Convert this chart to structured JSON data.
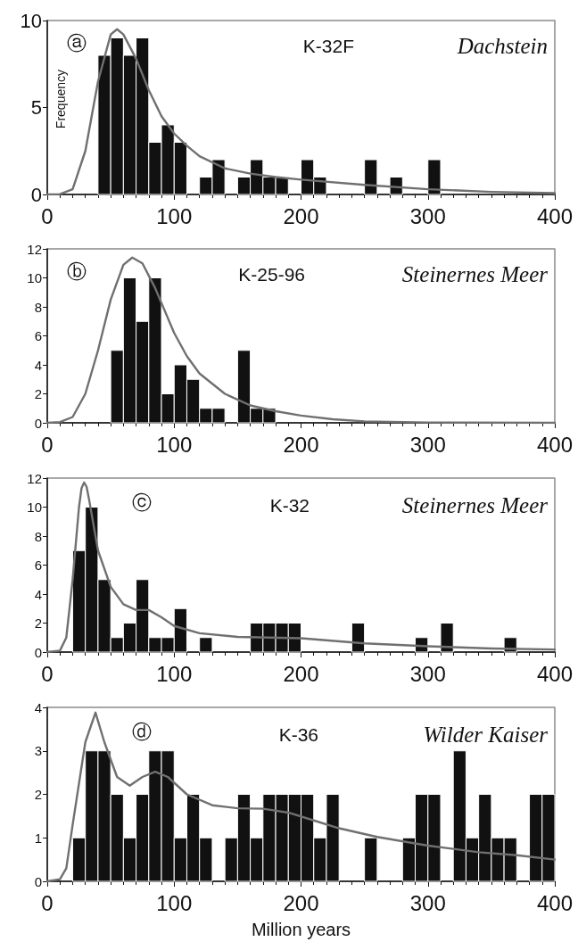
{
  "chart_data": [
    {
      "type": "histogram",
      "ylabel": "Frequency",
      "annotations": [
        "ⓐ",
        "K-32F",
        "Dachstein"
      ],
      "bins": [
        40,
        50,
        60,
        70,
        80,
        90,
        100,
        110,
        120,
        130,
        140,
        150,
        160,
        170,
        180,
        190,
        200,
        210,
        220,
        230,
        240,
        250,
        260,
        270,
        280,
        290,
        300,
        310
      ],
      "xlim": [
        0,
        400
      ],
      "xticks": [
        0,
        100,
        200,
        300,
        400
      ],
      "ylim": [
        0,
        10
      ],
      "yticks": [
        0,
        5,
        10
      ],
      "grid": false,
      "series": [
        {
          "color": "#111111",
          "values": [
            8,
            9,
            8,
            9,
            3,
            4,
            3,
            0,
            1,
            2,
            0,
            1,
            2,
            1,
            1,
            0,
            2,
            1,
            0,
            0,
            0,
            2,
            0,
            1,
            0,
            0,
            2
          ]
        },
        {
          "type": "line",
          "color": "#707070",
          "x": [
            0,
            10,
            20,
            30,
            40,
            50,
            55,
            60,
            70,
            80,
            90,
            100,
            110,
            120,
            140,
            160,
            180,
            200,
            250,
            300,
            350,
            400
          ],
          "values": [
            0,
            0.02,
            0.3,
            2.5,
            6.5,
            9.2,
            9.5,
            9.2,
            7.8,
            6,
            4.5,
            3.5,
            2.8,
            2.2,
            1.5,
            1.2,
            1,
            0.85,
            0.55,
            0.3,
            0.15,
            0.08
          ]
        }
      ]
    },
    {
      "type": "histogram",
      "annotations": [
        "ⓑ",
        "K-25-96",
        "Steinernes Meer"
      ],
      "bins": [
        50,
        60,
        70,
        80,
        90,
        100,
        110,
        120,
        130,
        140,
        150,
        160,
        170,
        180
      ],
      "xlim": [
        0,
        400
      ],
      "xticks": [
        0,
        100,
        200,
        300,
        400
      ],
      "ylim": [
        0,
        12
      ],
      "yticks": [
        0,
        2,
        4,
        6,
        8,
        10,
        12
      ],
      "grid": false,
      "series": [
        {
          "color": "#111111",
          "values": [
            5,
            10,
            7,
            10,
            2,
            4,
            3,
            1,
            1,
            0,
            5,
            1,
            1
          ]
        },
        {
          "type": "line",
          "color": "#707070",
          "x": [
            0,
            10,
            20,
            30,
            40,
            50,
            60,
            67,
            75,
            85,
            100,
            110,
            120,
            140,
            160,
            180,
            200,
            225,
            250,
            300,
            400
          ],
          "values": [
            0,
            0.05,
            0.4,
            2,
            5,
            8.5,
            10.9,
            11.4,
            11,
            9.3,
            6.2,
            4.6,
            3.4,
            2,
            1.2,
            0.8,
            0.5,
            0.25,
            0.1,
            0.02,
            0
          ]
        }
      ]
    },
    {
      "type": "histogram",
      "annotations": [
        "ⓒ",
        "K-32",
        "Steinernes Meer"
      ],
      "bins": [
        20,
        30,
        40,
        50,
        60,
        70,
        80,
        90,
        100,
        110,
        120,
        130,
        140,
        150,
        160,
        170,
        180,
        190,
        200,
        210,
        220,
        230,
        240,
        250,
        260,
        270,
        280,
        290,
        300,
        310,
        320,
        330,
        340,
        350,
        360,
        370
      ],
      "xlim": [
        0,
        400
      ],
      "xticks": [
        0,
        100,
        200,
        300,
        400
      ],
      "ylim": [
        0,
        12
      ],
      "yticks": [
        0,
        2,
        4,
        6,
        8,
        10,
        12
      ],
      "grid": false,
      "series": [
        {
          "color": "#111111",
          "values": [
            7,
            10,
            5,
            1,
            2,
            5,
            1,
            1,
            3,
            0,
            1,
            0,
            0,
            0,
            2,
            2,
            2,
            2,
            0,
            0,
            0,
            0,
            2,
            0,
            0,
            0,
            0,
            1,
            0,
            2,
            0,
            0,
            0,
            0,
            1
          ]
        },
        {
          "type": "line",
          "color": "#707070",
          "x": [
            0,
            10,
            15,
            20,
            25,
            27,
            29,
            31,
            33,
            40,
            50,
            60,
            70,
            80,
            90,
            100,
            120,
            150,
            200,
            250,
            300,
            350,
            400
          ],
          "values": [
            0,
            0.1,
            1,
            5,
            10,
            11.3,
            11.7,
            11.4,
            10.5,
            7,
            4.5,
            3.3,
            2.9,
            2.9,
            2.4,
            1.8,
            1.3,
            1.05,
            0.95,
            0.6,
            0.4,
            0.25,
            0.18
          ]
        }
      ]
    },
    {
      "type": "histogram",
      "xlabel": "Million years",
      "annotations": [
        "ⓓ",
        "K-36",
        "Wilder Kaiser"
      ],
      "bins": [
        20,
        30,
        40,
        50,
        60,
        70,
        80,
        90,
        100,
        110,
        120,
        130,
        140,
        150,
        160,
        170,
        180,
        190,
        200,
        210,
        220,
        230,
        240,
        250,
        260,
        270,
        280,
        290,
        300,
        310,
        320,
        330,
        340,
        350,
        360,
        370,
        380,
        390,
        400
      ],
      "xlim": [
        0,
        400
      ],
      "xticks": [
        0,
        100,
        200,
        300,
        400
      ],
      "ylim": [
        0,
        4
      ],
      "yticks": [
        0,
        1,
        2,
        3,
        4
      ],
      "grid": false,
      "series": [
        {
          "color": "#111111",
          "values": [
            1,
            3,
            3,
            2,
            1,
            2,
            3,
            3,
            1,
            2,
            1,
            0,
            1,
            2,
            1,
            2,
            2,
            2,
            2,
            1,
            2,
            0,
            0,
            1,
            0,
            0,
            1,
            2,
            2,
            0,
            3,
            1,
            2,
            1,
            1,
            0,
            2,
            2
          ]
        },
        {
          "type": "line",
          "color": "#707070",
          "x": [
            0,
            10,
            15,
            20,
            30,
            38,
            45,
            55,
            65,
            75,
            85,
            95,
            110,
            130,
            150,
            170,
            190,
            210,
            230,
            260,
            300,
            340,
            370,
            400
          ],
          "values": [
            0,
            0.05,
            0.3,
            1.3,
            3.2,
            3.88,
            3.2,
            2.4,
            2.2,
            2.4,
            2.52,
            2.4,
            2,
            1.75,
            1.68,
            1.67,
            1.58,
            1.4,
            1.22,
            1.02,
            0.82,
            0.67,
            0.6,
            0.5
          ]
        }
      ]
    }
  ]
}
